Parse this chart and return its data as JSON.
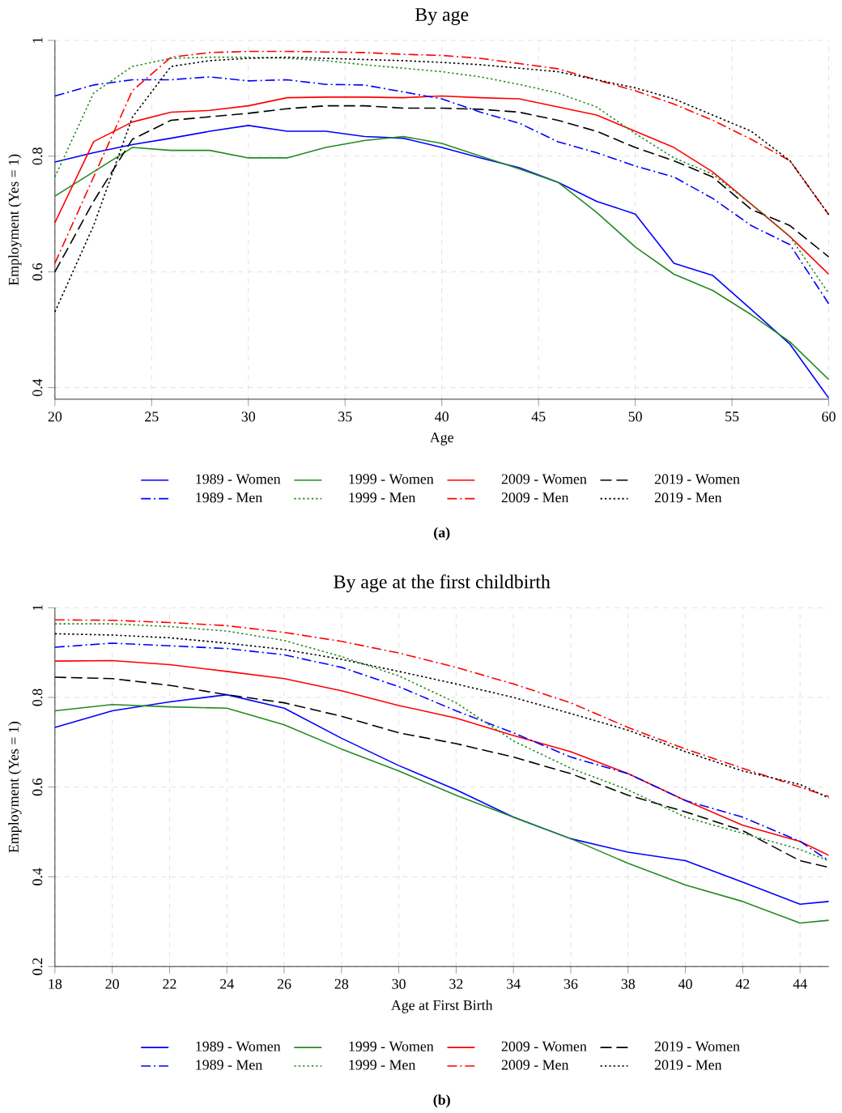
{
  "chart_data": [
    {
      "type": "line",
      "title": "By age",
      "xlabel": "Age",
      "ylabel": "Employment (Yes = 1)",
      "xlim": [
        20,
        60
      ],
      "ylim": [
        0.38,
        1
      ],
      "xticks": [
        20,
        25,
        30,
        35,
        40,
        45,
        50,
        55,
        60
      ],
      "yticks": [
        0.4,
        0.6,
        0.8,
        1
      ],
      "grid": true,
      "legend": "bottom",
      "annotations": [
        "**(a)**"
      ],
      "x": [
        20,
        22,
        24,
        26,
        28,
        30,
        32,
        34,
        36,
        38,
        40,
        42,
        44,
        46,
        48,
        50,
        52,
        54,
        56,
        58,
        60
      ],
      "series": [
        {
          "name": "1989 - Women",
          "color": "#0000ff",
          "line_style": "solid",
          "values": [
            0.79,
            0.806,
            0.82,
            0.831,
            0.843,
            0.853,
            0.843,
            0.843,
            0.834,
            0.831,
            0.815,
            0.797,
            0.78,
            0.755,
            0.722,
            0.7,
            0.615,
            0.594,
            0.535,
            0.475,
            0.382
          ]
        },
        {
          "name": "1999 - Women",
          "color": "#228b22",
          "line_style": "solid",
          "values": [
            0.731,
            0.773,
            0.815,
            0.81,
            0.81,
            0.797,
            0.797,
            0.815,
            0.827,
            0.834,
            0.822,
            0.8,
            0.778,
            0.755,
            0.703,
            0.643,
            0.596,
            0.568,
            0.526,
            0.479,
            0.414
          ]
        },
        {
          "name": "2009 - Women",
          "color": "#ff0000",
          "line_style": "solid",
          "values": [
            0.685,
            0.825,
            0.859,
            0.876,
            0.879,
            0.887,
            0.901,
            0.902,
            0.902,
            0.901,
            0.904,
            0.901,
            0.899,
            0.885,
            0.871,
            0.843,
            0.815,
            0.773,
            0.717,
            0.661,
            0.596
          ]
        },
        {
          "name": "2019 - Women",
          "color": "#000000",
          "line_style": "dashed",
          "values": [
            0.6,
            0.722,
            0.829,
            0.862,
            0.868,
            0.874,
            0.882,
            0.887,
            0.887,
            0.883,
            0.883,
            0.881,
            0.876,
            0.862,
            0.843,
            0.815,
            0.792,
            0.764,
            0.708,
            0.68,
            0.626
          ]
        },
        {
          "name": "1989 - Men",
          "color": "#0000ff",
          "line_style": "dashdot",
          "values": [
            0.904,
            0.923,
            0.932,
            0.932,
            0.937,
            0.93,
            0.932,
            0.924,
            0.923,
            0.911,
            0.899,
            0.876,
            0.857,
            0.825,
            0.806,
            0.783,
            0.764,
            0.727,
            0.68,
            0.647,
            0.545
          ]
        },
        {
          "name": "1999 - Men",
          "color": "#228b22",
          "line_style": "dotted",
          "values": [
            0.764,
            0.909,
            0.955,
            0.969,
            0.971,
            0.971,
            0.969,
            0.965,
            0.958,
            0.952,
            0.946,
            0.937,
            0.924,
            0.909,
            0.885,
            0.839,
            0.797,
            0.769,
            0.717,
            0.661,
            0.563
          ]
        },
        {
          "name": "2009 - Men",
          "color": "#ff0000",
          "line_style": "dashdot",
          "values": [
            0.615,
            0.764,
            0.913,
            0.971,
            0.979,
            0.981,
            0.981,
            0.98,
            0.979,
            0.976,
            0.974,
            0.969,
            0.96,
            0.951,
            0.932,
            0.913,
            0.89,
            0.862,
            0.829,
            0.792,
            0.699
          ]
        },
        {
          "name": "2019 - Men",
          "color": "#000000",
          "line_style": "dotted",
          "values": [
            0.531,
            0.68,
            0.867,
            0.955,
            0.965,
            0.969,
            0.971,
            0.969,
            0.967,
            0.965,
            0.962,
            0.958,
            0.952,
            0.946,
            0.932,
            0.918,
            0.899,
            0.871,
            0.843,
            0.792,
            0.699
          ]
        }
      ]
    },
    {
      "type": "line",
      "title": "By age at the first childbirth",
      "xlabel": "Age at First Birth",
      "ylabel": "Employment (Yes = 1)",
      "xlim": [
        18,
        45
      ],
      "ylim": [
        0.2,
        1
      ],
      "xticks": [
        18,
        20,
        22,
        24,
        26,
        28,
        30,
        32,
        34,
        36,
        38,
        40,
        42,
        44
      ],
      "yticks": [
        0.2,
        0.4,
        0.6,
        0.8,
        1
      ],
      "grid": true,
      "legend": "bottom",
      "annotations": [
        "**(b)**"
      ],
      "x": [
        18,
        20,
        22,
        24,
        26,
        28,
        30,
        32,
        34,
        36,
        38,
        40,
        42,
        44,
        45
      ],
      "series": [
        {
          "name": "1989 - Women",
          "color": "#0000ff",
          "line_style": "solid",
          "values": [
            0.733,
            0.77,
            0.79,
            0.806,
            0.776,
            0.709,
            0.648,
            0.594,
            0.533,
            0.485,
            0.455,
            0.436,
            0.388,
            0.339,
            0.345
          ]
        },
        {
          "name": "1999 - Women",
          "color": "#228b22",
          "line_style": "solid",
          "values": [
            0.77,
            0.784,
            0.779,
            0.776,
            0.739,
            0.685,
            0.636,
            0.582,
            0.533,
            0.485,
            0.43,
            0.382,
            0.345,
            0.297,
            0.303
          ]
        },
        {
          "name": "2009 - Women",
          "color": "#ff0000",
          "line_style": "solid",
          "values": [
            0.881,
            0.882,
            0.873,
            0.858,
            0.842,
            0.815,
            0.782,
            0.754,
            0.715,
            0.679,
            0.63,
            0.57,
            0.515,
            0.479,
            0.448
          ]
        },
        {
          "name": "2019 - Women",
          "color": "#000000",
          "line_style": "dashed",
          "values": [
            0.845,
            0.842,
            0.827,
            0.806,
            0.788,
            0.758,
            0.721,
            0.697,
            0.667,
            0.63,
            0.582,
            0.545,
            0.503,
            0.436,
            0.421
          ]
        },
        {
          "name": "1989 - Men",
          "color": "#0000ff",
          "line_style": "dashdot",
          "values": [
            0.912,
            0.921,
            0.915,
            0.909,
            0.895,
            0.867,
            0.824,
            0.77,
            0.721,
            0.667,
            0.63,
            0.57,
            0.533,
            0.479,
            0.436
          ]
        },
        {
          "name": "1999 - Men",
          "color": "#228b22",
          "line_style": "dotted",
          "values": [
            0.964,
            0.964,
            0.958,
            0.948,
            0.927,
            0.891,
            0.848,
            0.788,
            0.703,
            0.642,
            0.594,
            0.533,
            0.497,
            0.461,
            0.436
          ]
        },
        {
          "name": "2009 - Men",
          "color": "#ff0000",
          "line_style": "dashdot",
          "values": [
            0.973,
            0.972,
            0.967,
            0.96,
            0.945,
            0.925,
            0.899,
            0.867,
            0.83,
            0.788,
            0.733,
            0.685,
            0.642,
            0.6,
            0.579
          ]
        },
        {
          "name": "2019 - Men",
          "color": "#000000",
          "line_style": "dotted",
          "values": [
            0.942,
            0.939,
            0.933,
            0.921,
            0.907,
            0.885,
            0.858,
            0.83,
            0.8,
            0.764,
            0.727,
            0.679,
            0.636,
            0.606,
            0.576
          ]
        }
      ]
    }
  ]
}
